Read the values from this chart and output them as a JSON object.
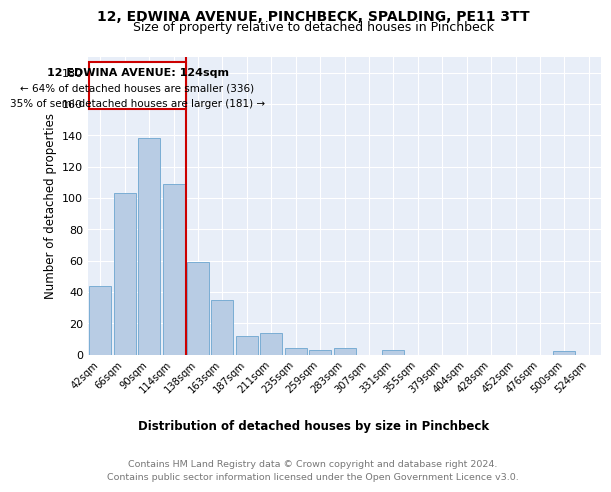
{
  "title": "12, EDWINA AVENUE, PINCHBECK, SPALDING, PE11 3TT",
  "subtitle": "Size of property relative to detached houses in Pinchbeck",
  "xlabel": "Distribution of detached houses by size in Pinchbeck",
  "ylabel": "Number of detached properties",
  "bar_values": [
    44,
    103,
    138,
    109,
    59,
    35,
    12,
    14,
    4,
    3,
    4,
    0,
    3,
    0,
    0,
    0,
    0,
    0,
    0,
    2,
    0
  ],
  "x_labels": [
    "42sqm",
    "66sqm",
    "90sqm",
    "114sqm",
    "138sqm",
    "163sqm",
    "187sqm",
    "211sqm",
    "235sqm",
    "259sqm",
    "283sqm",
    "307sqm",
    "331sqm",
    "355sqm",
    "379sqm",
    "404sqm",
    "428sqm",
    "452sqm",
    "476sqm",
    "500sqm",
    "524sqm"
  ],
  "bar_color": "#b8cce4",
  "bar_edge_color": "#7aadd4",
  "vline_color": "#cc0000",
  "annotation_title": "12 EDWINA AVENUE: 124sqm",
  "annotation_line1": "← 64% of detached houses are smaller (336)",
  "annotation_line2": "35% of semi-detached houses are larger (181) →",
  "annotation_box_color": "#cc0000",
  "ylim": [
    0,
    190
  ],
  "yticks": [
    0,
    20,
    40,
    60,
    80,
    100,
    120,
    140,
    160,
    180
  ],
  "bg_color": "#e8eef8",
  "footer_line1": "Contains HM Land Registry data © Crown copyright and database right 2024.",
  "footer_line2": "Contains public sector information licensed under the Open Government Licence v3.0.",
  "title_fontsize": 10,
  "subtitle_fontsize": 9
}
